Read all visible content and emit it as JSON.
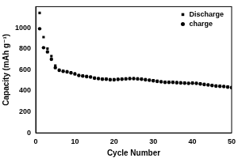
{
  "chart_data": {
    "type": "scatter",
    "x_label": "Cycle Number",
    "y_label": "Capacity (mAh g⁻¹)",
    "x": [
      1,
      2,
      3,
      4,
      5,
      6,
      7,
      8,
      9,
      10,
      11,
      12,
      13,
      14,
      15,
      16,
      17,
      18,
      19,
      20,
      21,
      22,
      23,
      24,
      25,
      26,
      27,
      28,
      29,
      30,
      31,
      32,
      33,
      34,
      35,
      36,
      37,
      38,
      39,
      40,
      41,
      42,
      43,
      44,
      45,
      46,
      47,
      48,
      49,
      50
    ],
    "series": [
      {
        "name": "Discharge",
        "color": "#000000",
        "marker": "square",
        "values": [
          1140,
          910,
          800,
          730,
          640,
          600,
          590,
          585,
          575,
          565,
          550,
          545,
          540,
          535,
          525,
          520,
          515,
          515,
          510,
          510,
          512,
          515,
          518,
          520,
          520,
          518,
          515,
          510,
          505,
          500,
          495,
          490,
          485,
          485,
          485,
          482,
          480,
          478,
          475,
          478,
          475,
          470,
          465,
          460,
          455,
          450,
          448,
          445,
          440,
          435
        ]
      },
      {
        "name": "charge",
        "color": "#000000",
        "marker": "circle",
        "values": [
          990,
          810,
          770,
          700,
          620,
          595,
          585,
          580,
          570,
          560,
          545,
          540,
          535,
          530,
          520,
          515,
          510,
          510,
          505,
          505,
          508,
          510,
          513,
          515,
          515,
          513,
          510,
          505,
          500,
          495,
          490,
          485,
          480,
          480,
          480,
          477,
          475,
          473,
          470,
          473,
          470,
          465,
          460,
          455,
          450,
          445,
          443,
          440,
          435,
          430
        ]
      }
    ],
    "xlim": [
      0,
      50
    ],
    "xticks": [
      0,
      10,
      20,
      30,
      40,
      50
    ],
    "ylim": [
      0,
      1200
    ],
    "yticks": [
      0,
      200,
      400,
      600,
      800,
      1000
    ],
    "grid": false,
    "legend": "upper right"
  }
}
